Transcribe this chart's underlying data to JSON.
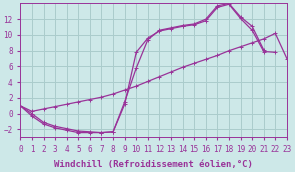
{
  "xlabel": "Windchill (Refroidissement éolien,°C)",
  "background_color": "#cde8e8",
  "line_color": "#993399",
  "grid_color": "#aacccc",
  "xlim": [
    0,
    23
  ],
  "ylim": [
    -3,
    14
  ],
  "xticks": [
    0,
    1,
    2,
    3,
    4,
    5,
    6,
    7,
    8,
    9,
    10,
    11,
    12,
    13,
    14,
    15,
    16,
    17,
    18,
    19,
    20,
    21,
    22,
    23
  ],
  "yticks": [
    -2,
    0,
    2,
    4,
    6,
    8,
    10,
    12
  ],
  "line1_x": [
    0,
    1,
    2,
    3,
    4,
    5,
    6,
    7,
    8,
    9,
    10,
    11,
    12,
    13,
    14,
    15,
    16,
    17,
    18,
    19,
    20,
    21,
    22,
    23
  ],
  "line1_y": [
    1.0,
    -0.3,
    -1.3,
    -1.8,
    -2.1,
    -2.4,
    -2.4,
    -2.4,
    -2.3,
    1.2,
    7.8,
    9.6,
    10.5,
    10.8,
    11.1,
    11.3,
    11.8,
    13.5,
    13.9,
    12.1,
    10.6,
    7.9,
    7.8,
    null
  ],
  "line2_x": [
    0,
    1,
    2,
    3,
    4,
    5,
    6,
    7,
    8,
    9,
    10,
    11,
    12,
    13,
    14,
    15,
    16,
    17,
    18,
    19,
    20,
    21,
    22,
    23
  ],
  "line2_y": [
    1.0,
    0.0,
    -1.1,
    -1.6,
    -1.9,
    -2.2,
    -2.3,
    -2.4,
    -2.3,
    1.5,
    5.8,
    9.4,
    10.6,
    10.9,
    11.2,
    11.4,
    12.0,
    13.7,
    14.0,
    12.3,
    11.1,
    8.1,
    null,
    null
  ],
  "line3_x": [
    0,
    1,
    2,
    3,
    4,
    5,
    6,
    7,
    8,
    9,
    10,
    11,
    12,
    13,
    14,
    15,
    16,
    17,
    18,
    19,
    20,
    21,
    22,
    23
  ],
  "line3_y": [
    1.0,
    0.3,
    0.6,
    0.9,
    1.2,
    1.5,
    1.8,
    2.1,
    2.5,
    3.0,
    3.5,
    4.1,
    4.7,
    5.3,
    5.9,
    6.4,
    6.9,
    7.4,
    8.0,
    8.5,
    9.0,
    9.5,
    10.2,
    7.0
  ],
  "xlabel_fontsize": 6.5,
  "tick_fontsize": 5.5
}
